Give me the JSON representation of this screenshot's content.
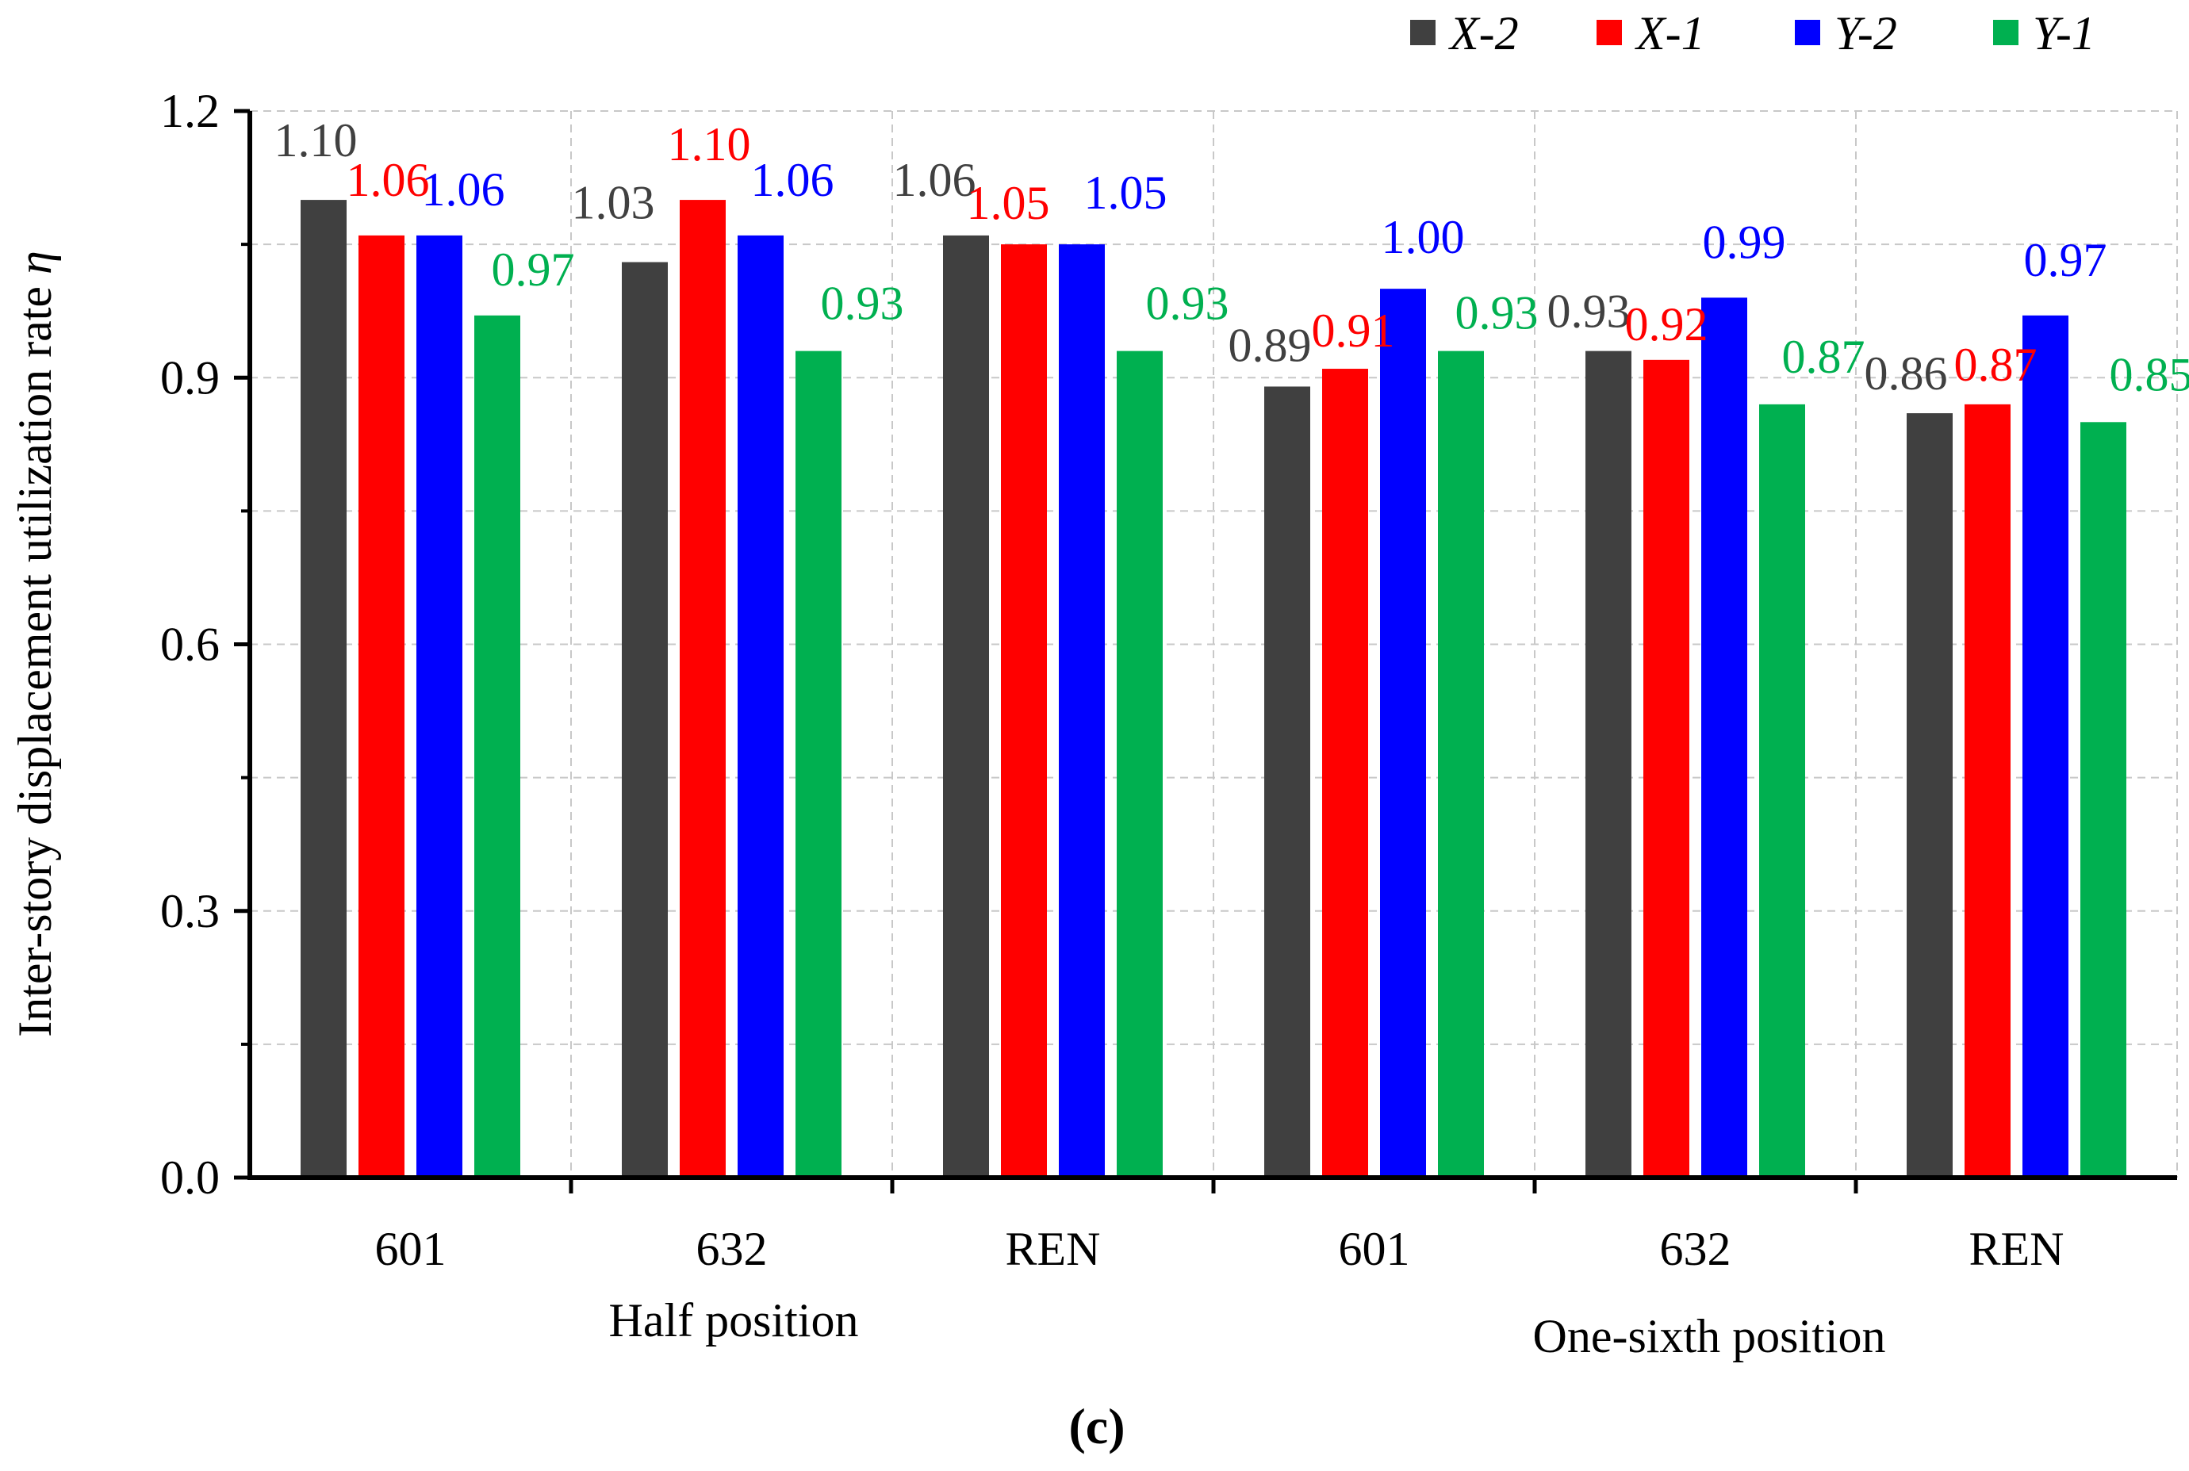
{
  "chart_data": {
    "type": "bar",
    "categories": [
      "601",
      "632",
      "REN",
      "601",
      "632",
      "REN"
    ],
    "group_labels": [
      {
        "label": "Half position",
        "categories": [
          0,
          1,
          2
        ]
      },
      {
        "label": "One-sixth position",
        "categories": [
          3,
          4,
          5
        ]
      }
    ],
    "series": [
      {
        "name": "X-2",
        "color": "#404040",
        "values": [
          1.1,
          1.03,
          1.06,
          0.89,
          0.93,
          0.86
        ],
        "labels": [
          "1.10",
          "1.03",
          "1.06",
          "0.89",
          "0.93",
          "0.86"
        ]
      },
      {
        "name": "X-1",
        "color": "#ff0000",
        "values": [
          1.06,
          1.1,
          1.05,
          0.91,
          0.92,
          0.87
        ],
        "labels": [
          "1.06",
          "1.10",
          "1.05",
          "0.91",
          "0.92",
          "0.87"
        ]
      },
      {
        "name": "Y-2",
        "color": "#0000ff",
        "values": [
          1.06,
          1.06,
          1.05,
          1.0,
          0.99,
          0.97
        ],
        "labels": [
          "1.06",
          "1.06",
          "1.05",
          "1.00",
          "0.99",
          "0.97"
        ]
      },
      {
        "name": "Y-1",
        "color": "#00b050",
        "values": [
          0.97,
          0.93,
          0.93,
          0.93,
          0.87,
          0.85
        ],
        "labels": [
          "0.97",
          "0.93",
          "0.93",
          "0.93",
          "0.87",
          "0.85"
        ]
      }
    ],
    "ylabel": "Inter-story displacement utilization rate",
    "ylabel_symbol": "η",
    "xlabel": "",
    "ylim": [
      0,
      1.2
    ],
    "yticks": [
      "0.0",
      "0.3",
      "0.6",
      "0.9",
      "1.2"
    ],
    "grid": true,
    "legend_position": "top-right",
    "panel_label": "(c)"
  }
}
